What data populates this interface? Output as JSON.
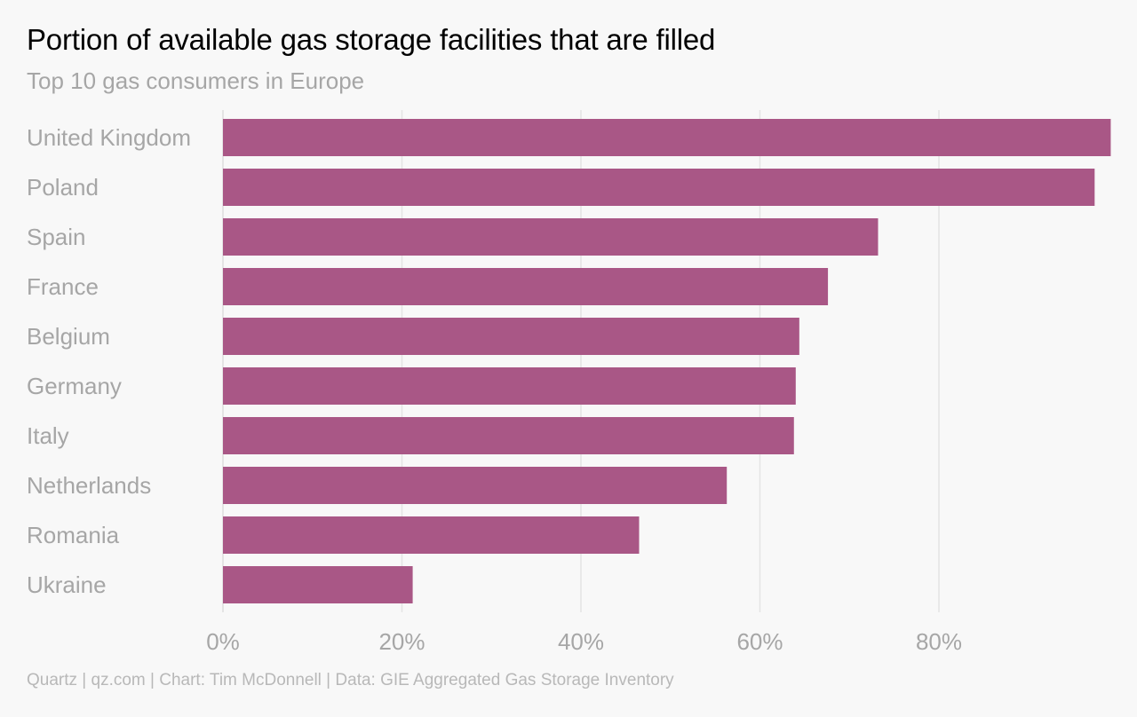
{
  "header": {
    "title": "Portion of available gas storage facilities that are filled",
    "subtitle": "Top 10 gas consumers in Europe"
  },
  "footer": {
    "credit": "Quartz | qz.com | Chart: Tim McDonnell | Data: GIE Aggregated Gas Storage Inventory"
  },
  "colors": {
    "bar": "#a95786",
    "grid": "#e4e4e4",
    "label": "#a6a6a6"
  },
  "chart_data": {
    "type": "bar",
    "orientation": "horizontal",
    "title": "Portion of available gas storage facilities that are filled",
    "subtitle": "Top 10 gas consumers in Europe",
    "categories": [
      "United Kingdom",
      "Poland",
      "Spain",
      "France",
      "Belgium",
      "Germany",
      "Italy",
      "Netherlands",
      "Romania",
      "Ukraine"
    ],
    "values": [
      99.2,
      97.4,
      73.2,
      67.6,
      64.4,
      64.0,
      63.8,
      56.3,
      46.5,
      21.2
    ],
    "unit": "%",
    "xlim": [
      0,
      99.2
    ],
    "xticks": [
      0,
      20,
      40,
      60,
      80
    ],
    "xtick_labels": [
      "0%",
      "20%",
      "40%",
      "60%",
      "80%"
    ],
    "grid": true,
    "legend": "none"
  }
}
